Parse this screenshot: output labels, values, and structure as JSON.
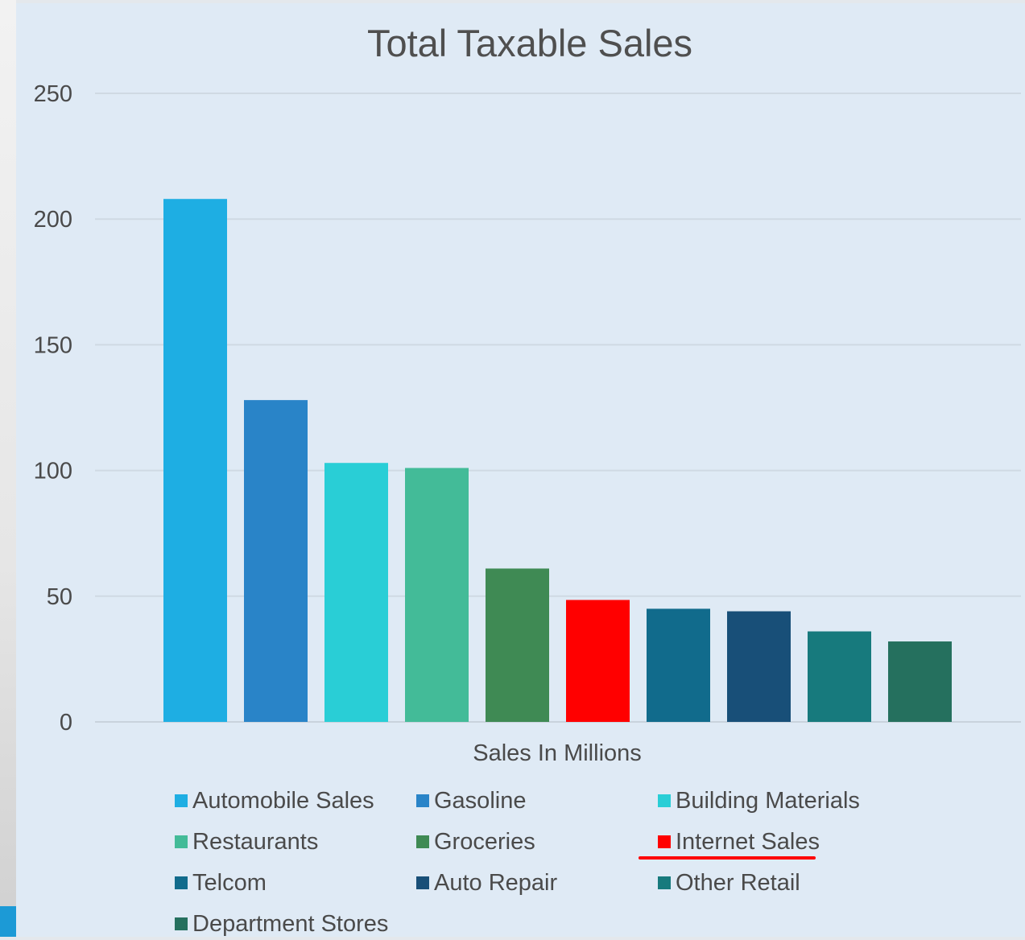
{
  "chart_data": {
    "type": "bar",
    "title": "Total Taxable Sales",
    "xlabel": "Sales In Millions",
    "ylabel": "",
    "ylim": [
      0,
      250
    ],
    "yticks": [
      0,
      50,
      100,
      150,
      200,
      250
    ],
    "grid": true,
    "legend_position": "bottom",
    "series": [
      {
        "name": "Automobile Sales",
        "value": 208,
        "color": "#1eaee3"
      },
      {
        "name": "Gasoline",
        "value": 128,
        "color": "#2984c8"
      },
      {
        "name": "Building Materials",
        "value": 103,
        "color": "#29ced6"
      },
      {
        "name": "Restaurants",
        "value": 101,
        "color": "#43bb98"
      },
      {
        "name": "Groceries",
        "value": 61,
        "color": "#3f8a54"
      },
      {
        "name": "Internet Sales",
        "value": 48.5,
        "color": "#ff0000"
      },
      {
        "name": "Telcom",
        "value": 45,
        "color": "#116b8c"
      },
      {
        "name": "Auto Repair",
        "value": 44,
        "color": "#184f78"
      },
      {
        "name": "Other Retail",
        "value": 36,
        "color": "#177a7d"
      },
      {
        "name": "Department Stores",
        "value": 32,
        "color": "#25705e"
      }
    ],
    "highlighted": "Internet Sales"
  }
}
